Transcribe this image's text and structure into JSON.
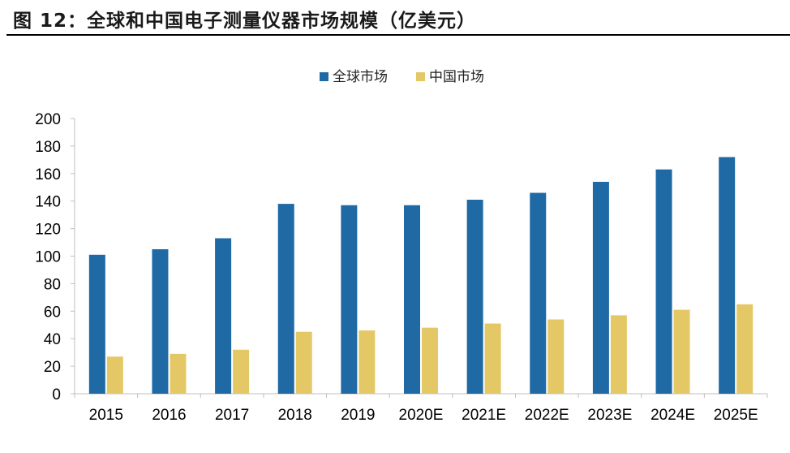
{
  "figure": {
    "title": "图 12：全球和中国电子测量仪器市场规模（亿美元）"
  },
  "colors": {
    "global": "#1F6AA5",
    "china": "#E5C866",
    "axis": "#bfbfbf"
  },
  "chart_data": {
    "type": "bar",
    "title": "",
    "xlabel": "",
    "ylabel": "",
    "ylim": [
      0,
      200
    ],
    "yticks": [
      "0",
      "20",
      "40",
      "60",
      "80",
      "100",
      "120",
      "140",
      "160",
      "180",
      "200"
    ],
    "grid": false,
    "legend_position": "top-center",
    "categories": [
      "2015",
      "2016",
      "2017",
      "2018",
      "2019",
      "2020E",
      "2021E",
      "2022E",
      "2023E",
      "2024E",
      "2025E"
    ],
    "series": [
      {
        "name": "全球市场",
        "values": [
          101,
          105,
          113,
          138,
          137,
          137,
          141,
          146,
          154,
          163,
          172
        ]
      },
      {
        "name": "中国市场",
        "values": [
          27,
          29,
          32,
          45,
          46,
          48,
          51,
          54,
          57,
          61,
          65
        ]
      }
    ]
  }
}
